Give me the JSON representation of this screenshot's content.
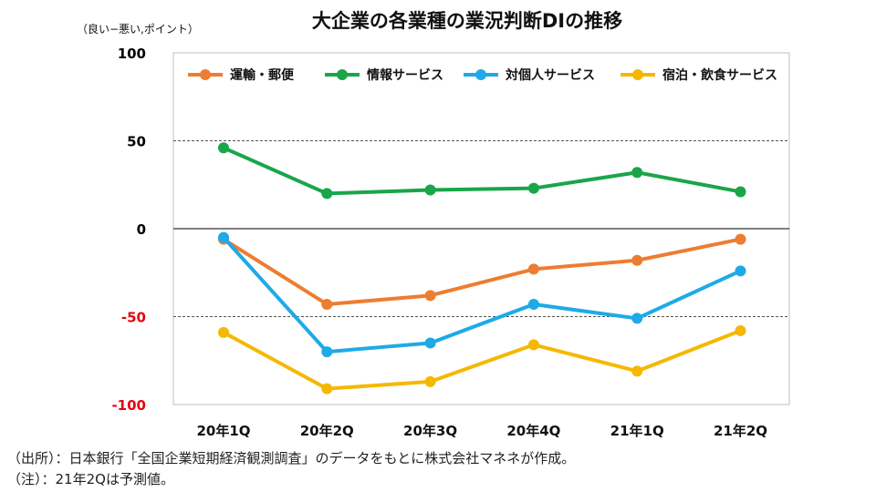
{
  "chart_data": {
    "type": "line",
    "title": "大企業の各業種の業況判断DIの推移",
    "ylabel": "（良い−悪い,ポイント）",
    "xlabel": "",
    "categories": [
      "20年1Q",
      "20年2Q",
      "20年3Q",
      "20年4Q",
      "21年1Q",
      "21年2Q"
    ],
    "ylim": [
      -100,
      100
    ],
    "yticks": [
      {
        "value": 100,
        "label": "100",
        "color": "#000000"
      },
      {
        "value": 50,
        "label": "50",
        "color": "#000000"
      },
      {
        "value": 0,
        "label": "0",
        "color": "#000000"
      },
      {
        "value": -50,
        "label": "-50",
        "color": "#e60012"
      },
      {
        "value": -100,
        "label": "-100",
        "color": "#e60012"
      }
    ],
    "series": [
      {
        "name": "運輸・郵便",
        "color": "#ed7d31",
        "values": [
          -6,
          -43,
          -38,
          -23,
          -18,
          -6
        ]
      },
      {
        "name": "情報サービス",
        "color": "#1aa54a",
        "values": [
          46,
          20,
          22,
          23,
          32,
          21
        ]
      },
      {
        "name": "対個人サービス",
        "color": "#1eaae7",
        "values": [
          -5,
          -70,
          -65,
          -43,
          -51,
          -24
        ]
      },
      {
        "name": "宿泊・飲食サービス",
        "color": "#f5b800",
        "values": [
          -59,
          -91,
          -87,
          -66,
          -81,
          -58
        ]
      }
    ],
    "legend_position": "top"
  },
  "notes": {
    "source": "（出所）：日本銀行「全国企業短期経済観測調査」のデータをもとに株式会社マネネが作成。",
    "note": "（注）：21年2Qは予測値。"
  }
}
